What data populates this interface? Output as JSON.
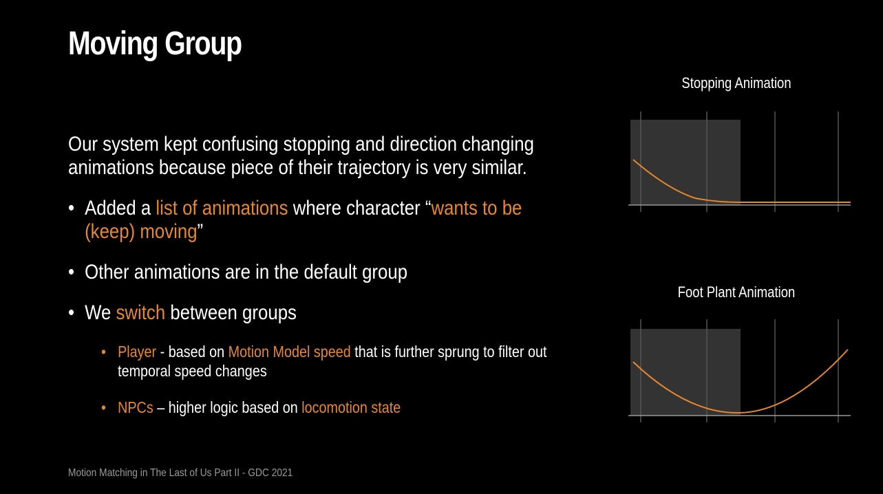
{
  "slide": {
    "title": "Moving Group",
    "intro": "Our system kept confusing stopping and direction changing animations because piece of their trajectory is very similar.",
    "bullets": [
      {
        "dot": "•",
        "p1": "Added a ",
        "h1": "list of animations",
        "p2": " where character “",
        "h2": "wants to be (keep) moving",
        "p3": "”"
      },
      {
        "dot": "•",
        "p1": "Other animations are in the default group"
      },
      {
        "dot": "•",
        "p1": "We ",
        "h1": "switch",
        "p2": " between groups"
      }
    ],
    "subbullets": [
      {
        "dot": "•",
        "h1": "Player",
        "p1": " - based on ",
        "h2": "Motion Model speed",
        "p2": " that is further sprung to filter out temporal speed changes"
      },
      {
        "dot": "•",
        "h1": "NPCs",
        "p1": " – higher logic based on ",
        "h2": "locomotion state"
      }
    ],
    "footer": "Motion Matching in The Last of Us Part II - GDC 2021"
  },
  "charts": {
    "stopping_title": "Stopping Animation",
    "footplant_title": "Foot Plant Animation"
  },
  "colors": {
    "accent": "#e8872e",
    "background": "#000000",
    "text": "#ffffff",
    "footer": "#9a9a9a",
    "panel": "#333333",
    "gridline": "#555555"
  }
}
